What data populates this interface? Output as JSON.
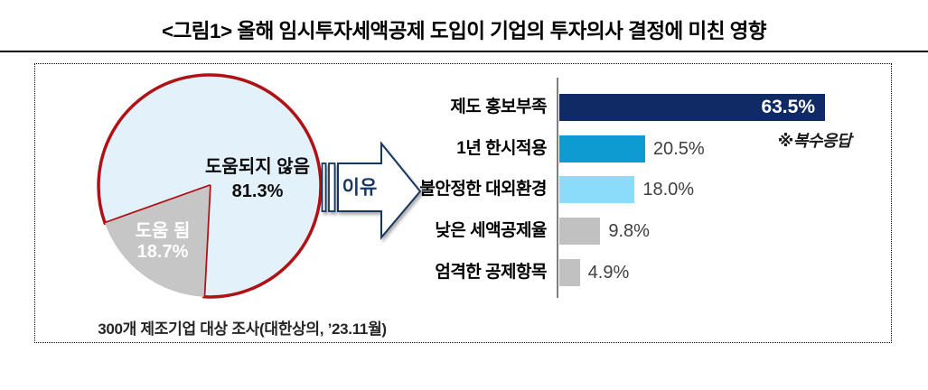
{
  "title": "<그림1> 올해 임시투자세액공제 도입이 기업의 투자의사 결정에 미친 영향",
  "arrow": {
    "label": "이유"
  },
  "source_note": "300개 제조기업 대상 조사(대한상의, ’23.11월)",
  "colors": {
    "pie_not_helpful": "#e3f1fb",
    "pie_helpful": "#c6c6c6",
    "pie_outline_red": "#b01115",
    "bar_navy": "#0f2a64",
    "bar_blue": "#0e9bd2",
    "bar_light_blue": "#8adcfa",
    "bar_gray": "#c1c1c1",
    "arrow_navy": "#17375e",
    "axis_gray": "#7f7f7f"
  },
  "chart_data": [
    {
      "type": "pie",
      "labels": [
        "도움되지 않음",
        "도움 됨"
      ],
      "values": [
        81.3,
        18.7
      ],
      "value_labels": [
        "81.3%",
        "18.7%"
      ],
      "slice_colors": [
        "#e3f1fb",
        "#c6c6c6"
      ],
      "outline_color": "#b01115",
      "label_text_colors": [
        "#0d0d0d",
        "#ffffff"
      ],
      "legend": false
    },
    {
      "type": "bar",
      "orientation": "horizontal",
      "categories": [
        "제도 홍보부족",
        "1년 한시적용",
        "불안정한 대외환경",
        "낮은 세액공제율",
        "엄격한 공제항목"
      ],
      "values": [
        63.5,
        20.5,
        18.0,
        9.8,
        4.9
      ],
      "value_labels": [
        "63.5%",
        "20.5%",
        "18.0%",
        "9.8%",
        "4.9%"
      ],
      "bar_colors": [
        "#0f2a64",
        "#0e9bd2",
        "#8adcfa",
        "#c1c1c1",
        "#c1c1c1"
      ],
      "note": "※복수응답",
      "xlim": [
        0,
        70
      ],
      "grid": false,
      "legend": false
    }
  ]
}
